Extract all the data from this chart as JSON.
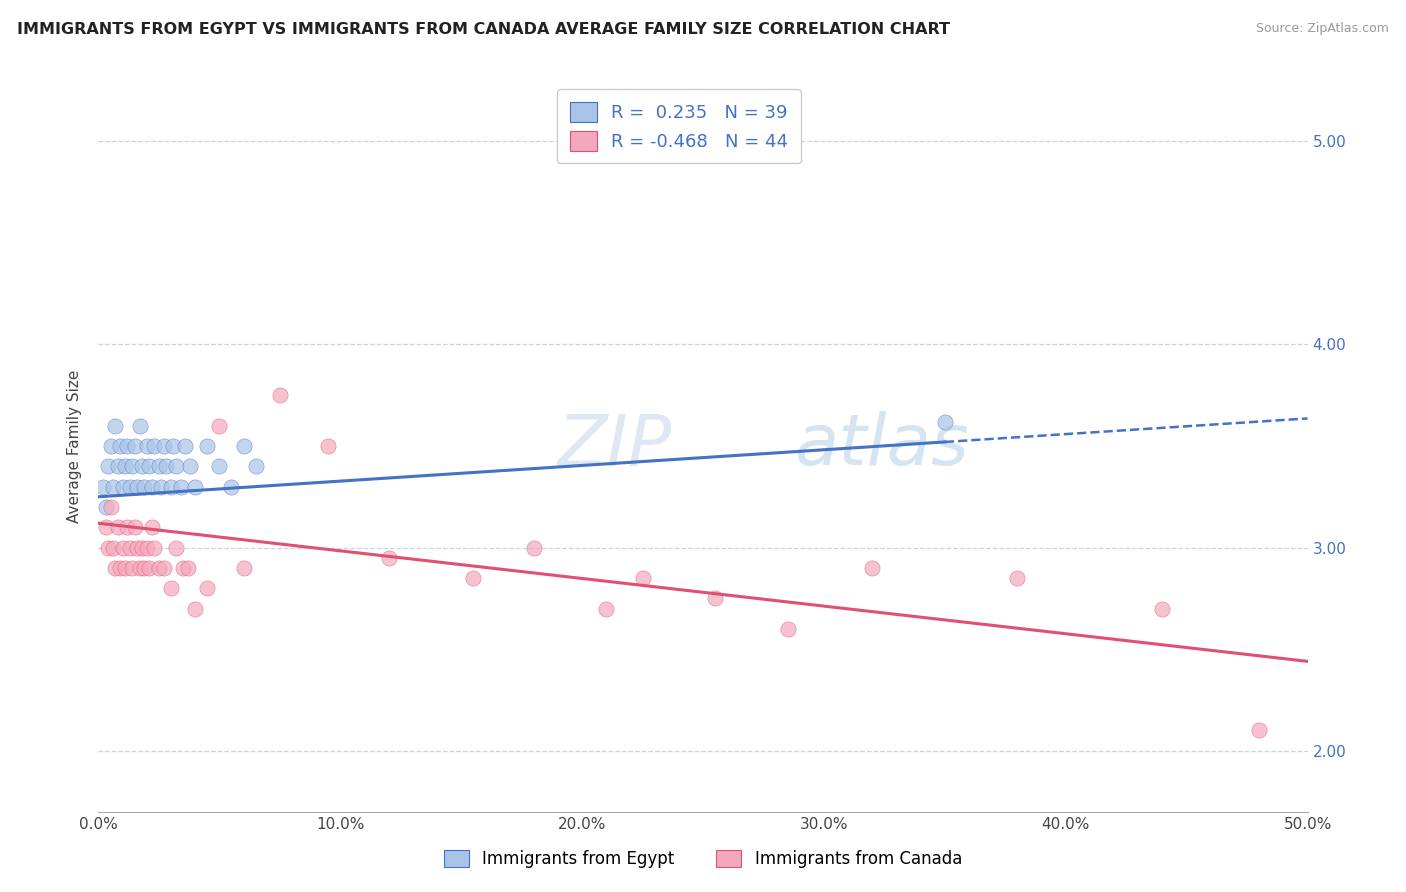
{
  "title": "IMMIGRANTS FROM EGYPT VS IMMIGRANTS FROM CANADA AVERAGE FAMILY SIZE CORRELATION CHART",
  "source": "Source: ZipAtlas.com",
  "ylabel": "Average Family Size",
  "yticks": [
    2.0,
    3.0,
    4.0,
    5.0
  ],
  "xlim": [
    0.0,
    50.0
  ],
  "ylim": [
    1.7,
    5.3
  ],
  "legend_egypt": {
    "R": "0.235",
    "N": "39"
  },
  "legend_canada": {
    "R": "-0.468",
    "N": "44"
  },
  "egypt_color": "#aac4e8",
  "canada_color": "#f4a8bc",
  "egypt_line_color": "#4472c4",
  "canada_line_color": "#e05070",
  "watermark_color": "#c8d8ee",
  "background_color": "#ffffff",
  "grid_color": "#c8d4e8",
  "egypt_scatter_x": [
    0.2,
    0.3,
    0.4,
    0.5,
    0.6,
    0.7,
    0.8,
    0.9,
    1.0,
    1.1,
    1.2,
    1.3,
    1.4,
    1.5,
    1.6,
    1.7,
    1.8,
    1.9,
    2.0,
    2.1,
    2.2,
    2.3,
    2.5,
    2.6,
    2.7,
    2.8,
    3.0,
    3.1,
    3.2,
    3.4,
    3.6,
    3.8,
    4.0,
    4.5,
    5.0,
    5.5,
    6.0,
    6.5,
    35.0
  ],
  "egypt_scatter_y": [
    3.3,
    3.2,
    3.4,
    3.5,
    3.3,
    3.6,
    3.4,
    3.5,
    3.3,
    3.4,
    3.5,
    3.3,
    3.4,
    3.5,
    3.3,
    3.6,
    3.4,
    3.3,
    3.5,
    3.4,
    3.3,
    3.5,
    3.4,
    3.3,
    3.5,
    3.4,
    3.3,
    3.5,
    3.4,
    3.3,
    3.5,
    3.4,
    3.3,
    3.5,
    3.4,
    3.3,
    3.5,
    3.4,
    3.62
  ],
  "canada_scatter_x": [
    0.3,
    0.4,
    0.5,
    0.6,
    0.7,
    0.8,
    0.9,
    1.0,
    1.1,
    1.2,
    1.3,
    1.4,
    1.5,
    1.6,
    1.7,
    1.8,
    1.9,
    2.0,
    2.1,
    2.2,
    2.3,
    2.5,
    2.7,
    3.0,
    3.2,
    3.5,
    3.7,
    4.0,
    4.5,
    5.0,
    6.0,
    7.5,
    9.5,
    12.0,
    15.5,
    18.0,
    21.0,
    22.5,
    25.5,
    28.5,
    32.0,
    38.0,
    44.0,
    48.0
  ],
  "canada_scatter_y": [
    3.1,
    3.0,
    3.2,
    3.0,
    2.9,
    3.1,
    2.9,
    3.0,
    2.9,
    3.1,
    3.0,
    2.9,
    3.1,
    3.0,
    2.9,
    3.0,
    2.9,
    3.0,
    2.9,
    3.1,
    3.0,
    2.9,
    2.9,
    2.8,
    3.0,
    2.9,
    2.9,
    2.7,
    2.8,
    3.6,
    2.9,
    3.75,
    3.5,
    2.95,
    2.85,
    3.0,
    2.7,
    2.85,
    2.75,
    2.6,
    2.9,
    2.85,
    2.7,
    2.1
  ],
  "egypt_line_x0": 0.0,
  "egypt_line_y0": 3.25,
  "egypt_line_x1": 35.0,
  "egypt_line_y1": 3.52,
  "canada_line_x0": 0.0,
  "canada_line_y0": 3.12,
  "canada_line_x1": 50.0,
  "canada_line_y1": 2.44
}
